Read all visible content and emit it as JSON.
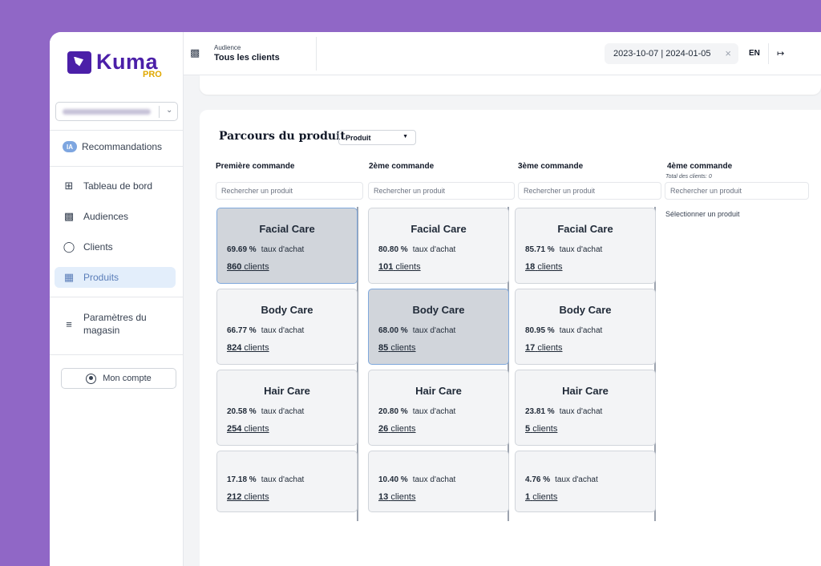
{
  "sidebar": {
    "brand": "Kuma",
    "brand_tag": "PRO",
    "recommendations": {
      "badge": "IA",
      "label": "Recommandations"
    },
    "items": [
      {
        "label": "Tableau de bord",
        "icon": "grid-icon"
      },
      {
        "label": "Audiences",
        "icon": "users-icon"
      },
      {
        "label": "Clients",
        "icon": "user-icon"
      },
      {
        "label": "Produits",
        "icon": "box-icon",
        "active": true
      }
    ],
    "settings": {
      "label": "Paramètres du magasin",
      "icon": "sliders-icon"
    },
    "account_button": "Mon compte"
  },
  "header": {
    "audience_label": "Audience",
    "audience_value": "Tous les clients",
    "date_range": "2023-10-07 | 2024-01-05",
    "language": "EN"
  },
  "journey": {
    "title": "Parcours du produit",
    "type_select": "Produit",
    "search_placeholder": "Rechercher un produit",
    "rate_label": "taux d'achat",
    "clients_suffix": "clients",
    "columns": [
      {
        "title": "Première commande",
        "cards": [
          {
            "name": "Facial Care",
            "rate": "69.69 %",
            "clients": "860",
            "selected": true
          },
          {
            "name": "Body Care",
            "rate": "66.77 %",
            "clients": "824"
          },
          {
            "name": "Hair Care",
            "rate": "20.58 %",
            "clients": "254"
          },
          {
            "name": "",
            "rate": "17.18 %",
            "clients": "212"
          }
        ]
      },
      {
        "title": "2ème commande",
        "cards": [
          {
            "name": "Facial Care",
            "rate": "80.80 %",
            "clients": "101"
          },
          {
            "name": "Body Care",
            "rate": "68.00 %",
            "clients": "85",
            "selected": true
          },
          {
            "name": "Hair Care",
            "rate": "20.80 %",
            "clients": "26"
          },
          {
            "name": "",
            "rate": "10.40 %",
            "clients": "13"
          }
        ]
      },
      {
        "title": "3ème commande",
        "cards": [
          {
            "name": "Facial Care",
            "rate": "85.71 %",
            "clients": "18"
          },
          {
            "name": "Body Care",
            "rate": "80.95 %",
            "clients": "17"
          },
          {
            "name": "Hair Care",
            "rate": "23.81 %",
            "clients": "5"
          },
          {
            "name": "",
            "rate": "4.76 %",
            "clients": "1"
          }
        ]
      },
      {
        "title": "4ème commande",
        "subtitle": "Total des clients: 0",
        "empty_text": "Sélectionner un produit",
        "cards": []
      }
    ]
  }
}
